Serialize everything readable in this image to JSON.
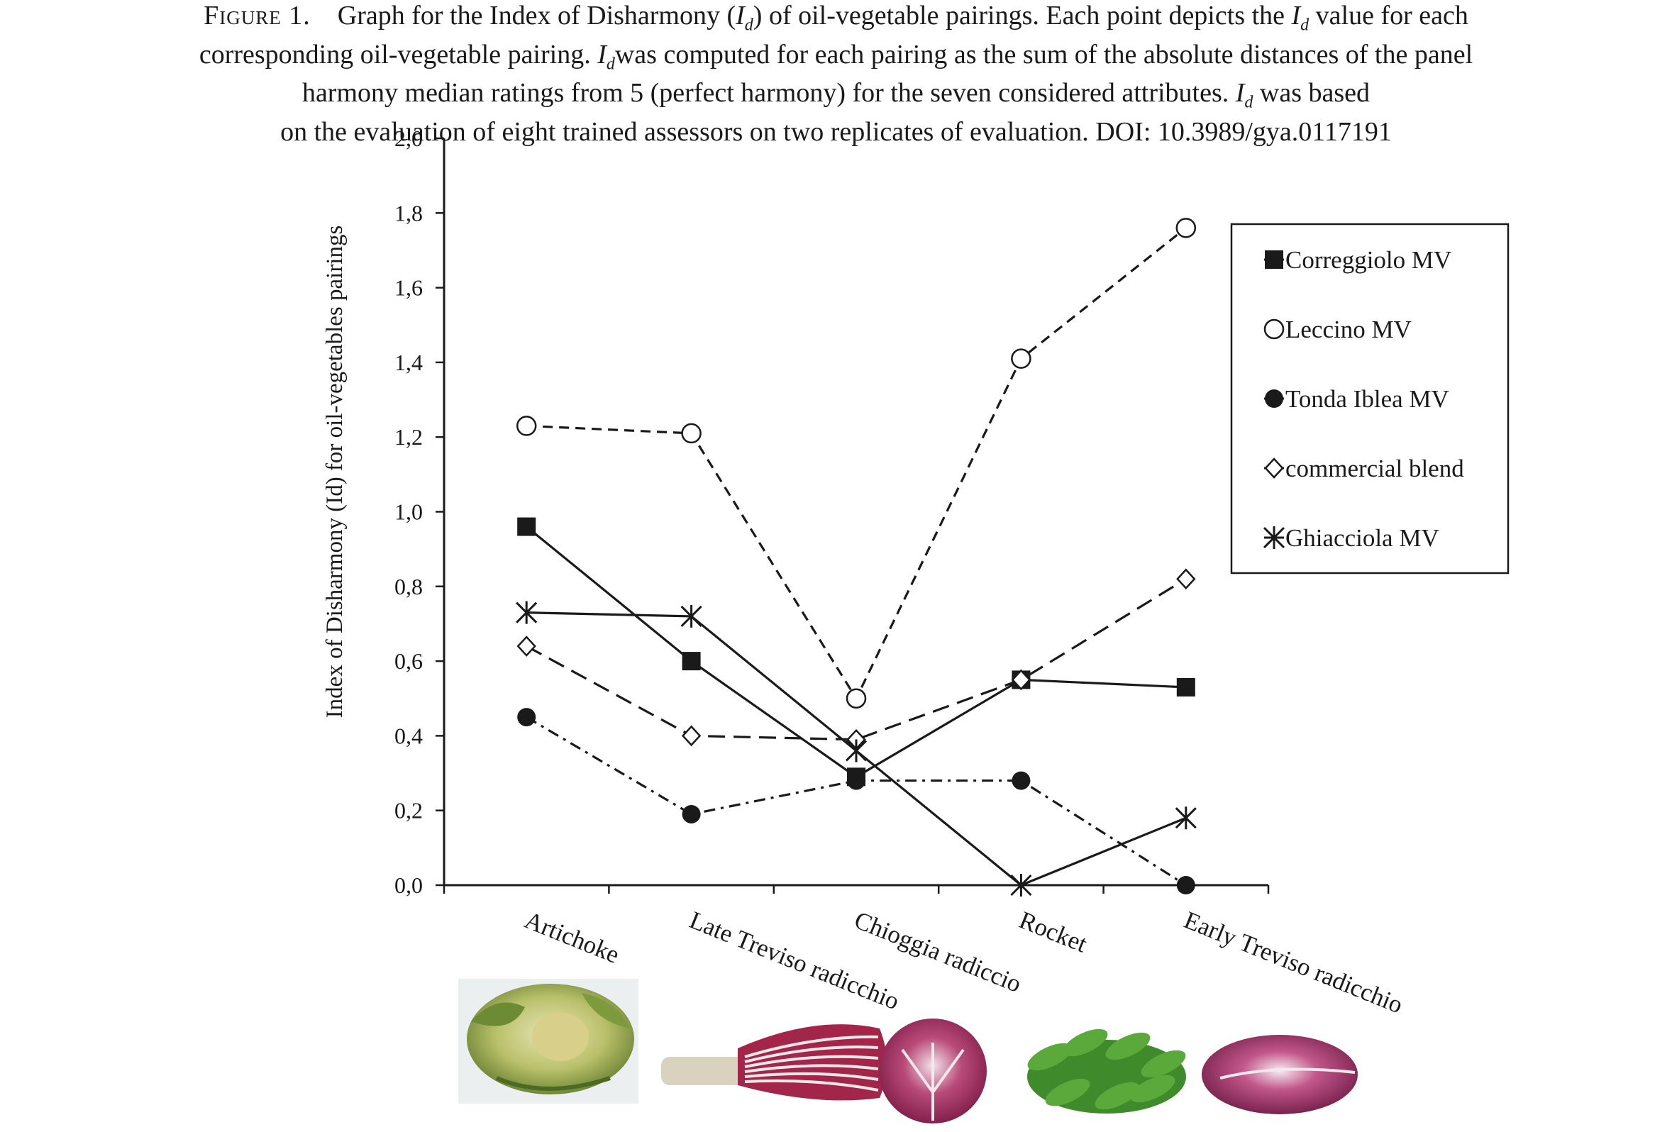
{
  "caption": {
    "label": "Figure 1.",
    "l1_a": "Graph for the Index of Disharmony (",
    "id_i": "I",
    "id_d": "d",
    "l1_b": ") of oil-vegetable pairings. Each point depicts the ",
    "l1_c": " value for each",
    "l2_a": "corresponding oil-vegetable pairing. ",
    "l2_b": "was computed for each pairing as the sum of the absolute distances of the panel",
    "l3_a": "harmony median ratings from 5 (perfect harmony) for the seven considered attributes. ",
    "l3_b": " was based",
    "l4": "on the evaluation of eight trained assessors on two replicates of evaluation. DOI: 10.3989/gya.0117191"
  },
  "colors": {
    "ink": "#1a1a1a",
    "background": "#ffffff"
  },
  "chart_data": {
    "type": "line",
    "ylabel": "Index of Disharmony (Id) for oil-vegetables pairings",
    "xlabel": "",
    "ylim": [
      0,
      2.0
    ],
    "yticks": [
      "0,0",
      "0,2",
      "0,4",
      "0,6",
      "0,8",
      "1,0",
      "1,2",
      "1,4",
      "1,6",
      "1,8",
      "2,0"
    ],
    "categories": [
      "Artichoke",
      "Late Treviso radicchio",
      "Chioggia radiccio",
      "Rocket",
      "Early Treviso radicchio"
    ],
    "legend_position": "top-right",
    "series": [
      {
        "name": "Correggiolo MV",
        "marker": "filled-square",
        "line": "solid",
        "values": [
          0.96,
          0.6,
          0.29,
          0.55,
          0.53
        ]
      },
      {
        "name": "Leccino MV",
        "marker": "open-circle",
        "line": "dashed",
        "values": [
          1.23,
          1.21,
          0.5,
          1.41,
          1.76
        ]
      },
      {
        "name": "Tonda Iblea MV",
        "marker": "filled-circle",
        "line": "dash-dot",
        "values": [
          0.45,
          0.19,
          0.28,
          0.28,
          0.0
        ]
      },
      {
        "name": "commercial blend",
        "marker": "open-diamond",
        "line": "long-dash",
        "values": [
          0.64,
          0.4,
          0.39,
          0.55,
          0.82
        ]
      },
      {
        "name": "Ghiacciola MV",
        "marker": "asterisk",
        "line": "solid",
        "values": [
          0.73,
          0.72,
          0.36,
          0.0,
          0.18
        ]
      }
    ],
    "images": [
      {
        "name": "artichoke-photo"
      },
      {
        "name": "late-treviso-radicchio-photo"
      },
      {
        "name": "chioggia-radicchio-photo"
      },
      {
        "name": "rocket-photo"
      },
      {
        "name": "early-treviso-radicchio-photo"
      }
    ]
  }
}
